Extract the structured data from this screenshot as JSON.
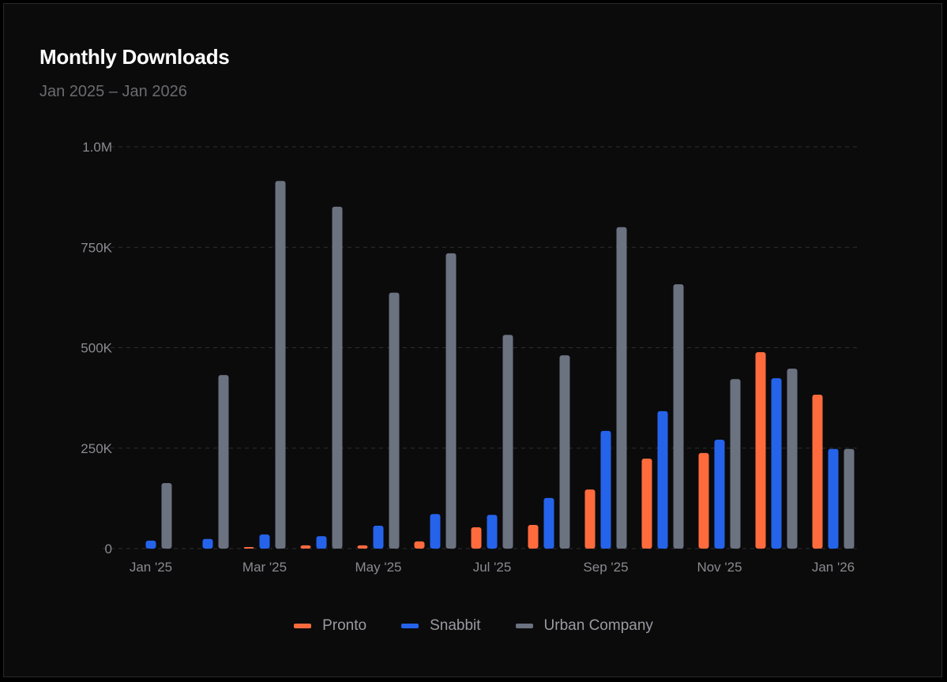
{
  "chart_data": {
    "type": "bar",
    "title": "Monthly Downloads",
    "subtitle": "Jan 2025 – Jan 2026",
    "xlabel": "",
    "ylabel": "",
    "ylim": [
      0,
      1000000
    ],
    "yticks": [
      0,
      250000,
      500000,
      750000,
      1000000
    ],
    "ytick_labels": [
      "0",
      "250K",
      "500K",
      "750K",
      "1.0M"
    ],
    "categories": [
      "Jan '25",
      "Feb '25",
      "Mar '25",
      "Apr '25",
      "May '25",
      "Jun '25",
      "Jul '25",
      "Aug '25",
      "Sep '25",
      "Oct '25",
      "Nov '25",
      "Dec '25",
      "Jan '26"
    ],
    "xtick_labels": [
      "Jan '25",
      "",
      "Mar '25",
      "",
      "May '25",
      "",
      "Jul '25",
      "",
      "Sep '25",
      "",
      "Nov '25",
      "",
      "Jan '26"
    ],
    "grid": true,
    "legend_position": "bottom",
    "series": [
      {
        "name": "Pronto",
        "color": "#ff6b3d",
        "values": [
          0,
          0,
          4000,
          8000,
          8000,
          18000,
          53000,
          59000,
          147000,
          224000,
          238000,
          489000,
          383000
        ]
      },
      {
        "name": "Snabbit",
        "color": "#2563eb",
        "values": [
          20000,
          24000,
          35000,
          31000,
          57000,
          86000,
          84000,
          126000,
          293000,
          342000,
          271000,
          424000,
          248000
        ]
      },
      {
        "name": "Urban Company",
        "color": "#6b7280",
        "values": [
          163000,
          432000,
          915000,
          851000,
          637000,
          735000,
          532000,
          481000,
          800000,
          658000,
          422000,
          448000,
          248000
        ]
      }
    ]
  }
}
